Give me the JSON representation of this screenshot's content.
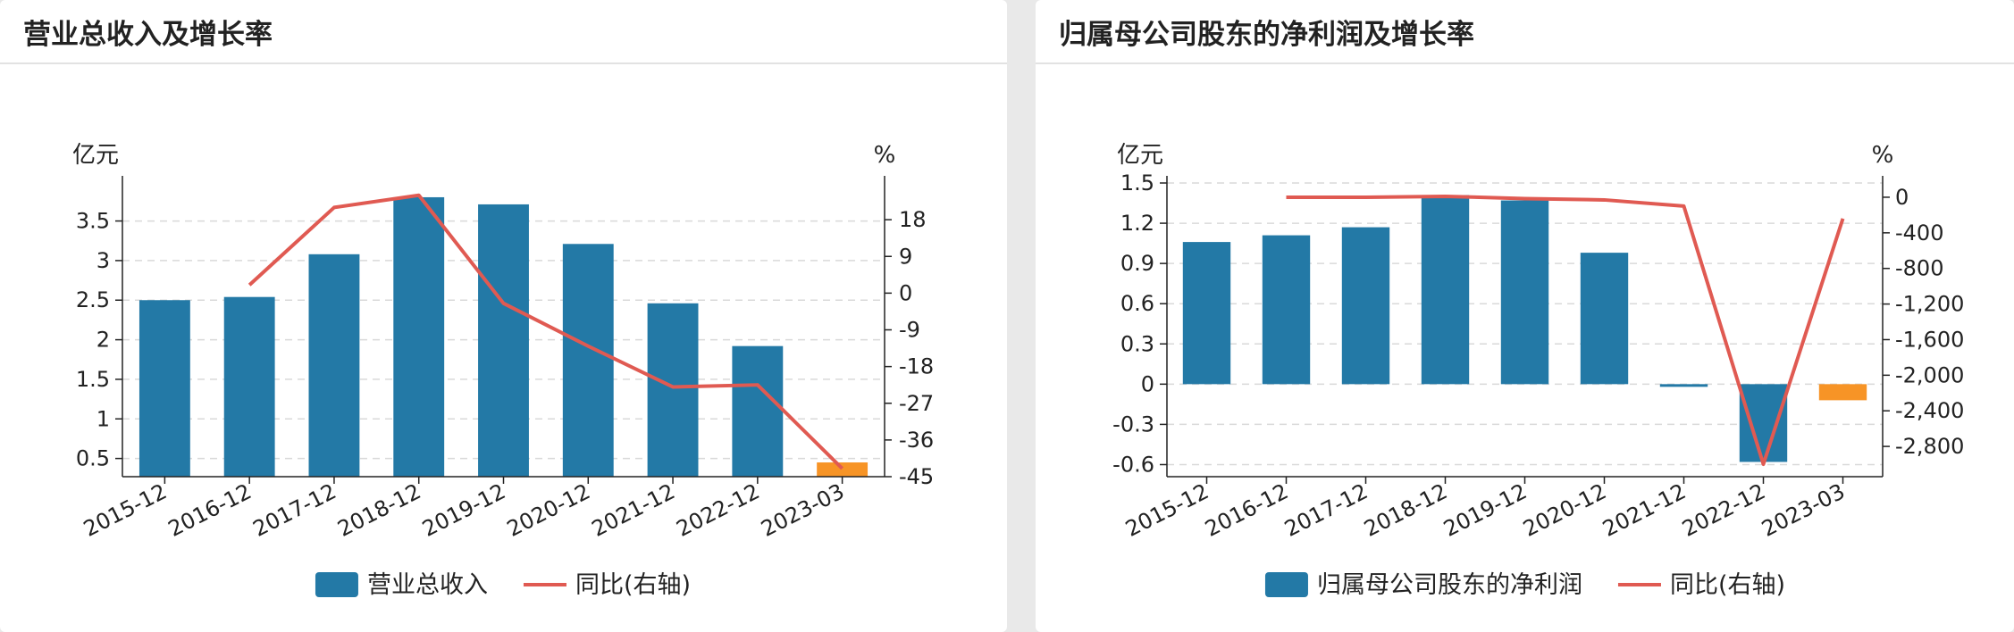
{
  "colors": {
    "bar": "#2379a6",
    "bar_highlight": "#f79426",
    "line": "#e05a52",
    "grid": "#d9d9d9",
    "axis": "#222222"
  },
  "panels": [
    {
      "title": "营业总收入及增长率",
      "chart_data": {
        "type": "bar",
        "categories": [
          "2015-12",
          "2016-12",
          "2017-12",
          "2018-12",
          "2019-12",
          "2020-12",
          "2021-12",
          "2022-12",
          "2023-03"
        ],
        "series": [
          {
            "name": "营业总收入",
            "type": "bar",
            "axis": "left",
            "values": [
              2.5,
              2.54,
              3.08,
              3.8,
              3.71,
              3.21,
              2.46,
              1.92,
              0.45
            ]
          },
          {
            "name": "同比(右轴)",
            "type": "line",
            "axis": "right",
            "values": [
              null,
              2,
              21,
              24,
              -2.5,
              -13,
              -23,
              -22.5,
              -43
            ]
          }
        ],
        "highlight_index": 8,
        "left_axis": {
          "unit": "亿元",
          "ticks": [
            0.5,
            1,
            1.5,
            2,
            2.5,
            3,
            3.5
          ],
          "tick_labels": [
            "0.5",
            "1",
            "1.5",
            "2",
            "2.5",
            "3",
            "3.5"
          ],
          "range": [
            0.27,
            3.98
          ]
        },
        "right_axis": {
          "unit": "%",
          "ticks": [
            18,
            9,
            0,
            -9,
            -18,
            -27,
            -36,
            -45
          ],
          "tick_labels": [
            "18",
            "9",
            "0",
            "-9",
            "-18",
            "-27",
            "-36",
            "-45"
          ],
          "range": [
            -45,
            27
          ]
        },
        "grid": true,
        "legend_position": "bottom"
      }
    },
    {
      "title": "归属母公司股东的净利润及增长率",
      "chart_data": {
        "type": "bar",
        "categories": [
          "2015-12",
          "2016-12",
          "2017-12",
          "2018-12",
          "2019-12",
          "2020-12",
          "2021-12",
          "2022-12",
          "2023-03"
        ],
        "series": [
          {
            "name": "归属母公司股东的净利润",
            "type": "bar",
            "axis": "left",
            "values": [
              1.06,
              1.11,
              1.17,
              1.41,
              1.37,
              0.98,
              -0.02,
              -0.58,
              -0.12
            ]
          },
          {
            "name": "同比(右轴)",
            "type": "line",
            "axis": "right",
            "values": [
              null,
              0,
              0,
              10,
              -15,
              -30,
              -100,
              -3000,
              -240
            ]
          }
        ],
        "highlight_index": 8,
        "left_axis": {
          "unit": "亿元",
          "ticks": [
            1.5,
            1.2,
            0.9,
            0.6,
            0.3,
            0,
            -0.3,
            -0.6
          ],
          "tick_labels": [
            "1.5",
            "1.2",
            "0.9",
            "0.6",
            "0.3",
            "0",
            "-0.3",
            "-0.6"
          ],
          "range": [
            -0.69,
            1.5
          ]
        },
        "right_axis": {
          "unit": "%",
          "ticks": [
            0,
            -400,
            -800,
            -1200,
            -1600,
            -2000,
            -2400,
            -2800
          ],
          "tick_labels": [
            "0",
            "-400",
            "-800",
            "-1,200",
            "-1,600",
            "-2,000",
            "-2,400",
            "-2,800"
          ],
          "range": [
            -3140,
            160
          ]
        },
        "grid": true,
        "legend_position": "bottom"
      }
    }
  ]
}
